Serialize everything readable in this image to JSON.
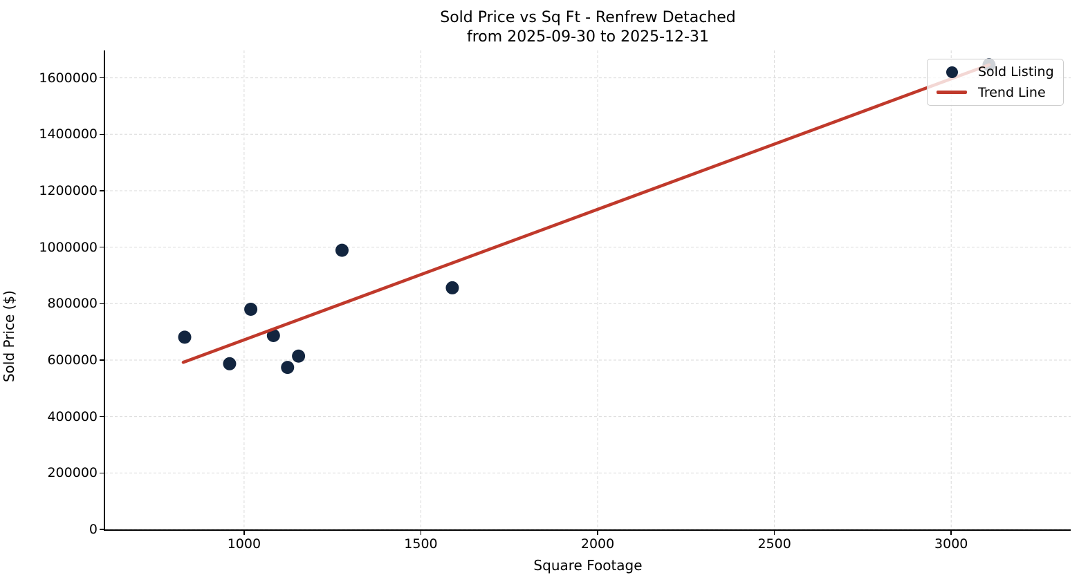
{
  "chart_data": {
    "type": "scatter",
    "title_line1": "Sold Price vs Sq Ft - Renfrew Detached",
    "title_line2": "from 2025-09-30 to 2025-12-31",
    "xlabel": "Square Footage",
    "ylabel": "Sold Price ($)",
    "xlim": [
      607,
      3338
    ],
    "ylim": [
      0,
      1697000
    ],
    "x_ticks": [
      1000,
      1500,
      2000,
      2500,
      3000
    ],
    "y_ticks": [
      0,
      200000,
      400000,
      600000,
      800000,
      1000000,
      1200000,
      1400000,
      1600000
    ],
    "grid": true,
    "legend": {
      "position": "upper right",
      "entries": [
        {
          "label": "Sold Listing",
          "marker": "dot"
        },
        {
          "label": "Trend Line",
          "marker": "line"
        }
      ]
    },
    "series": [
      {
        "name": "Sold Listing",
        "type": "scatter",
        "color": "#12253f",
        "marker_size": 19,
        "points": [
          {
            "sqft": 832,
            "price": 681000
          },
          {
            "sqft": 959,
            "price": 587000
          },
          {
            "sqft": 1019,
            "price": 780000
          },
          {
            "sqft": 1083,
            "price": 687000
          },
          {
            "sqft": 1123,
            "price": 574000
          },
          {
            "sqft": 1154,
            "price": 614000
          },
          {
            "sqft": 1277,
            "price": 989000
          },
          {
            "sqft": 1589,
            "price": 856000
          },
          {
            "sqft": 3107,
            "price": 1646000
          }
        ]
      },
      {
        "name": "Trend Line",
        "type": "line",
        "color": "#c0392b",
        "line_width": 4.5,
        "points": [
          {
            "sqft": 828,
            "price": 592000
          },
          {
            "sqft": 3107,
            "price": 1646000
          }
        ]
      }
    ],
    "style": {
      "grid_color": "#d9d9d9",
      "axis_color": "#000000",
      "background": "#ffffff",
      "legend_border": "#cccccc"
    }
  }
}
